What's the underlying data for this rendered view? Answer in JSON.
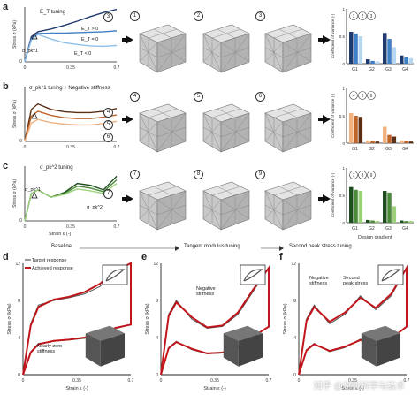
{
  "panels": {
    "a": {
      "letter": "a",
      "legend": "E_T tuning",
      "ylabel": "Stress σ (kPa)",
      "xticks": [
        "0",
        "0.35",
        "0.7"
      ],
      "ytick": "0",
      "annot": [
        "E_T > 0",
        "E_T = 0",
        "E_T < 0",
        "σ_pk^1"
      ],
      "steps": [
        "1",
        "2",
        "3"
      ],
      "bar_ylabel": "Coefficient of variance (-)",
      "bar_ticks": [
        "G1",
        "G2",
        "G3",
        "G4"
      ],
      "bar_yticks": [
        "0",
        "0.5",
        "1"
      ]
    },
    "b": {
      "letter": "b",
      "legend": "σ_pk^1 tuning + Negative stiffness",
      "ylabel": "Stress σ (kPa)",
      "xticks": [
        "0",
        "0.35",
        "0.7"
      ],
      "ytick": "0",
      "steps": [
        "4",
        "5",
        "6"
      ],
      "bar_ylabel": "Coefficient of variance (-)",
      "bar_ticks": [
        "G1",
        "G2",
        "G3",
        "G4"
      ],
      "bar_yticks": [
        "0",
        "0.5",
        "1"
      ]
    },
    "c": {
      "letter": "c",
      "legend": "σ_pk^2 tuning",
      "ylabel": "Stress σ (kPa)",
      "xlabel": "Strain ε (-)",
      "xticks": [
        "0",
        "0.35",
        "0.7"
      ],
      "ytick": "0",
      "annot": [
        "σ_pk^2",
        "σ_pk^1"
      ],
      "steps": [
        "7",
        "8",
        "9"
      ],
      "bar_ylabel": "Coefficient of variance (-)",
      "bar_xlabel": "Design gradient",
      "bar_ticks": [
        "G1",
        "G2",
        "G3",
        "G4"
      ],
      "bar_yticks": [
        "0",
        "0.5",
        "1"
      ]
    },
    "d": {
      "letter": "d",
      "legend": [
        "Target response",
        "Achieved response"
      ],
      "annot": "Nearly zero stiffness",
      "ylabel": "Stress σ (kPa)",
      "xlabel": "Strain ε (-)",
      "yticks": [
        "0",
        "4",
        "8",
        "12"
      ],
      "xticks": [
        "0",
        "0.35",
        "0.7"
      ]
    },
    "e": {
      "letter": "e",
      "annot": "Negative stiffness",
      "ylabel": "Stress σ (kPa)",
      "xlabel": "Strain ε (-)",
      "yticks": [
        "0",
        "4",
        "8",
        "12"
      ],
      "xticks": [
        "0",
        "0.35",
        "0.7"
      ]
    },
    "f": {
      "letter": "f",
      "annot1": "Negative stiffness",
      "annot2": "Second peak stress",
      "ylabel": "Stress σ (kPa)",
      "xlabel": "Strain ε (-)",
      "yticks": [
        "0",
        "4",
        "8",
        "12"
      ],
      "xticks": [
        "0",
        "0.35",
        "0.7"
      ]
    }
  },
  "flow": {
    "baseline": "Baseline",
    "tangent": "Tangent modulus tuning",
    "second": "Second peak stress tuning"
  },
  "watermark": "知乎 @材料科学与技术",
  "chart_data": [
    {
      "type": "line",
      "panel": "a",
      "x": [
        0,
        0.05,
        0.1,
        0.2,
        0.3,
        0.4,
        0.5,
        0.6,
        0.7
      ],
      "series": [
        {
          "name": "E_T > 0",
          "values": [
            0,
            5.5,
            6.6,
            7.2,
            8.0,
            8.9,
            9.9,
            10.8,
            11.5
          ]
        },
        {
          "name": "E_T = 0",
          "values": [
            0,
            5.0,
            6.2,
            6.3,
            6.3,
            6.4,
            6.5,
            6.6,
            6.8
          ]
        },
        {
          "name": "E_T < 0",
          "values": [
            0,
            4.8,
            6.0,
            5.0,
            4.2,
            3.8,
            3.5,
            3.4,
            3.6
          ]
        }
      ],
      "colors": [
        "#1f3a6e",
        "#3f7fc4",
        "#8fbfe6"
      ]
    },
    {
      "type": "bar",
      "panel": "a",
      "categories": [
        "G1",
        "G2",
        "G3",
        "G4"
      ],
      "series": [
        {
          "name": "1",
          "values": [
            0.58,
            0.08,
            0.56,
            0.15
          ]
        },
        {
          "name": "2",
          "values": [
            0.55,
            0.05,
            0.45,
            0.12
          ]
        },
        {
          "name": "3",
          "values": [
            0.5,
            0.04,
            0.3,
            0.1
          ]
        }
      ],
      "colors": [
        "#1f3a6e",
        "#3f7fc4",
        "#b7d6ef"
      ],
      "ylim": [
        0,
        1
      ]
    },
    {
      "type": "line",
      "panel": "b",
      "x": [
        0,
        0.05,
        0.1,
        0.2,
        0.3,
        0.4,
        0.5,
        0.6,
        0.7
      ],
      "series": [
        {
          "name": "4",
          "values": [
            0,
            7.0,
            8.2,
            7.0,
            6.5,
            6.3,
            6.3,
            6.6,
            7.2
          ]
        },
        {
          "name": "5",
          "values": [
            0,
            5.5,
            6.6,
            5.7,
            5.2,
            5.0,
            5.0,
            5.3,
            5.8
          ]
        },
        {
          "name": "6",
          "values": [
            0,
            4.0,
            4.8,
            4.1,
            3.8,
            3.6,
            3.6,
            3.9,
            4.4
          ]
        }
      ],
      "colors": [
        "#5a2e12",
        "#c0652a",
        "#f0b27e"
      ]
    },
    {
      "type": "bar",
      "panel": "b",
      "categories": [
        "G1",
        "G2",
        "G3",
        "G4"
      ],
      "series": [
        {
          "name": "4",
          "values": [
            0.55,
            0.05,
            0.3,
            0.05
          ]
        },
        {
          "name": "5",
          "values": [
            0.5,
            0.04,
            0.15,
            0.04
          ]
        },
        {
          "name": "6",
          "values": [
            0.48,
            0.03,
            0.12,
            0.03
          ]
        }
      ],
      "colors": [
        "#f0b27e",
        "#c0652a",
        "#5a2e12"
      ],
      "ylim": [
        0,
        1
      ]
    },
    {
      "type": "line",
      "panel": "c",
      "x": [
        0,
        0.05,
        0.1,
        0.2,
        0.3,
        0.4,
        0.5,
        0.6,
        0.7
      ],
      "series": [
        {
          "name": "7",
          "values": [
            0,
            6.0,
            6.8,
            5.2,
            6.2,
            8.2,
            7.8,
            6.8,
            9.8
          ]
        },
        {
          "name": "8",
          "values": [
            0,
            6.0,
            6.8,
            5.2,
            6.0,
            7.6,
            7.2,
            6.4,
            9.0
          ]
        },
        {
          "name": "9",
          "values": [
            0,
            6.0,
            6.8,
            5.2,
            5.8,
            7.0,
            6.6,
            6.0,
            8.2
          ]
        }
      ],
      "colors": [
        "#1e4d1e",
        "#4a8a3a",
        "#9cd07a"
      ]
    },
    {
      "type": "bar",
      "panel": "c",
      "categories": [
        "G1",
        "G2",
        "G3",
        "G4"
      ],
      "series": [
        {
          "name": "7",
          "values": [
            0.65,
            0.05,
            0.58,
            0.04
          ]
        },
        {
          "name": "8",
          "values": [
            0.6,
            0.04,
            0.55,
            0.03
          ]
        },
        {
          "name": "9",
          "values": [
            0.58,
            0.03,
            0.3,
            0.03
          ]
        }
      ],
      "colors": [
        "#1e4d1e",
        "#4a8a3a",
        "#9cd07a"
      ],
      "ylim": [
        0,
        1
      ]
    },
    {
      "type": "line",
      "panel": "d",
      "x": [
        0,
        0.05,
        0.1,
        0.2,
        0.3,
        0.4,
        0.5,
        0.6,
        0.7
      ],
      "series": [
        {
          "name": "Target response",
          "values": [
            0,
            5.5,
            7.5,
            8.0,
            8.3,
            8.7,
            9.5,
            11.0,
            12.0
          ]
        },
        {
          "name": "Achieved response",
          "values": [
            0,
            5.3,
            7.3,
            8.1,
            8.4,
            8.9,
            9.8,
            11.2,
            12.0
          ]
        }
      ],
      "colors": [
        "#555555",
        "#c0151b"
      ],
      "ylim": [
        0,
        12
      ]
    },
    {
      "type": "line",
      "panel": "e",
      "x": [
        0,
        0.05,
        0.1,
        0.2,
        0.3,
        0.4,
        0.5,
        0.6,
        0.7
      ],
      "series": [
        {
          "name": "Target response",
          "values": [
            0,
            6.5,
            8.0,
            6.0,
            5.0,
            5.2,
            6.5,
            9.0,
            11.5
          ]
        },
        {
          "name": "Achieved response",
          "values": [
            0,
            6.3,
            7.8,
            6.2,
            5.1,
            5.3,
            6.7,
            9.2,
            11.5
          ]
        }
      ],
      "colors": [
        "#555555",
        "#c0151b"
      ],
      "ylim": [
        0,
        12
      ]
    },
    {
      "type": "line",
      "panel": "f",
      "x": [
        0,
        0.05,
        0.1,
        0.2,
        0.3,
        0.4,
        0.5,
        0.6,
        0.7
      ],
      "series": [
        {
          "name": "Target response",
          "values": [
            0,
            6.0,
            7.5,
            5.5,
            6.5,
            8.5,
            7.0,
            8.5,
            11.5
          ]
        },
        {
          "name": "Achieved response",
          "values": [
            0,
            5.8,
            7.3,
            5.7,
            6.7,
            8.3,
            7.2,
            8.7,
            11.5
          ]
        }
      ],
      "colors": [
        "#555555",
        "#c0151b"
      ],
      "ylim": [
        0,
        12
      ]
    }
  ]
}
